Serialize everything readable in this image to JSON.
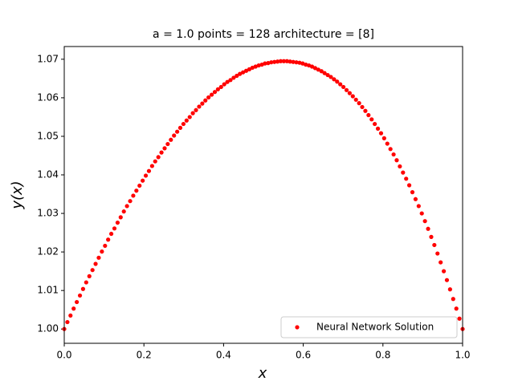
{
  "chart_data": {
    "type": "scatter",
    "title": "a = 1.0 points = 128 architecture = [8]",
    "x_label": "x",
    "y_label": "y(x)",
    "series": [
      {
        "name": "Neural Network Solution",
        "color": "#ff0000",
        "x": [
          0,
          0.0079,
          0.0157,
          0.0236,
          0.0315,
          0.0394,
          0.0472,
          0.0551,
          0.063,
          0.0709,
          0.0787,
          0.0866,
          0.0945,
          0.1024,
          0.1102,
          0.1181,
          0.126,
          0.1339,
          0.1417,
          0.1496,
          0.1575,
          0.1654,
          0.1732,
          0.1811,
          0.189,
          0.1969,
          0.2047,
          0.2126,
          0.2205,
          0.2283,
          0.2362,
          0.2441,
          0.252,
          0.2598,
          0.2677,
          0.2756,
          0.2835,
          0.2913,
          0.2992,
          0.3071,
          0.315,
          0.3228,
          0.3307,
          0.3386,
          0.3465,
          0.3543,
          0.3622,
          0.3701,
          0.378,
          0.3858,
          0.3937,
          0.4016,
          0.4094,
          0.4173,
          0.4252,
          0.4331,
          0.4409,
          0.4488,
          0.4567,
          0.4646,
          0.4724,
          0.4803,
          0.4882,
          0.4961,
          0.5039,
          0.5118,
          0.5197,
          0.5276,
          0.5354,
          0.5433,
          0.5512,
          0.5591,
          0.5669,
          0.5748,
          0.5827,
          0.5906,
          0.5984,
          0.6063,
          0.6142,
          0.622,
          0.6299,
          0.6378,
          0.6457,
          0.6535,
          0.6614,
          0.6693,
          0.6772,
          0.685,
          0.6929,
          0.7008,
          0.7087,
          0.7165,
          0.7244,
          0.7323,
          0.7402,
          0.748,
          0.7559,
          0.7638,
          0.7717,
          0.7795,
          0.7874,
          0.7953,
          0.8031,
          0.811,
          0.8189,
          0.8268,
          0.8346,
          0.8425,
          0.8504,
          0.8583,
          0.8661,
          0.874,
          0.8819,
          0.8898,
          0.8976,
          0.9055,
          0.9134,
          0.9213,
          0.9291,
          0.937,
          0.9449,
          0.9528,
          0.9606,
          0.9685,
          0.9764,
          0.9843,
          0.9921,
          1
        ],
        "values": [
          1.0,
          1.0018,
          1.0035,
          1.0053,
          1.007,
          1.0087,
          1.0104,
          1.0121,
          1.0137,
          1.0153,
          1.0169,
          1.0185,
          1.0201,
          1.0216,
          1.0232,
          1.0247,
          1.0261,
          1.0276,
          1.029,
          1.0305,
          1.0319,
          1.0332,
          1.0346,
          1.0359,
          1.0372,
          1.0385,
          1.0398,
          1.041,
          1.0423,
          1.0435,
          1.0446,
          1.0458,
          1.0469,
          1.048,
          1.0491,
          1.0502,
          1.0512,
          1.0522,
          1.0532,
          1.0541,
          1.055,
          1.056,
          1.0568,
          1.0577,
          1.0585,
          1.0593,
          1.0601,
          1.0608,
          1.0615,
          1.0622,
          1.0628,
          1.0635,
          1.0641,
          1.0646,
          1.0652,
          1.0657,
          1.0662,
          1.0666,
          1.067,
          1.0674,
          1.0678,
          1.0681,
          1.0684,
          1.0686,
          1.0689,
          1.069,
          1.0692,
          1.0693,
          1.0694,
          1.0695,
          1.0695,
          1.0695,
          1.0694,
          1.0693,
          1.0692,
          1.0691,
          1.0689,
          1.0686,
          1.0684,
          1.0681,
          1.0677,
          1.0673,
          1.0669,
          1.0664,
          1.0659,
          1.0654,
          1.0648,
          1.0642,
          1.0635,
          1.0628,
          1.062,
          1.0612,
          1.0604,
          1.0595,
          1.0586,
          1.0576,
          1.0566,
          1.0555,
          1.0544,
          1.0532,
          1.052,
          1.0508,
          1.0495,
          1.0481,
          1.0467,
          1.0453,
          1.0438,
          1.0422,
          1.0406,
          1.039,
          1.0373,
          1.0355,
          1.0337,
          1.0319,
          1.03,
          1.028,
          1.026,
          1.0239,
          1.0218,
          1.0196,
          1.0173,
          1.015,
          1.0127,
          1.0103,
          1.0078,
          1.0053,
          1.0027,
          1.0
        ]
      }
    ],
    "xlim": [
      0,
      1
    ],
    "ylim": [
      0.9963,
      1.0733
    ],
    "xticks": [
      {
        "value": 0,
        "label": "0.0"
      },
      0.2,
      0.4,
      0.6,
      0.8,
      {
        "value": 1,
        "label": "1.0"
      }
    ],
    "yticks": [
      {
        "value": 1,
        "label": "1.00"
      },
      1.01,
      1.02,
      1.03,
      1.04,
      1.05,
      1.06,
      1.07
    ],
    "legend": "lower right",
    "grid": false
  }
}
